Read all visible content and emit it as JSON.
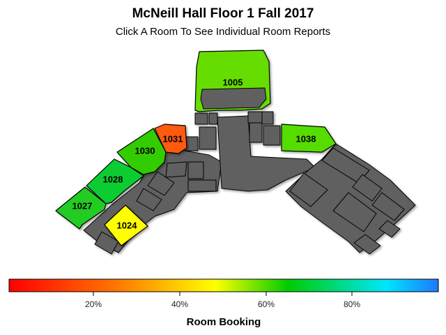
{
  "map": {
    "title": "McNeill Hall Floor 1 Fall 2017",
    "subtitle": "Click A Room To See Individual Room Reports"
  },
  "rooms": [
    {
      "id": "1005",
      "label": "1005",
      "booking_pct": 67,
      "color": "#66dd00"
    },
    {
      "id": "1031",
      "label": "1031",
      "booking_pct": 37,
      "color": "#ff5a10"
    },
    {
      "id": "1030",
      "label": "1030",
      "booking_pct": 69,
      "color": "#33cc00"
    },
    {
      "id": "1028",
      "label": "1028",
      "booking_pct": 71,
      "color": "#11cc33"
    },
    {
      "id": "1027",
      "label": "1027",
      "booking_pct": 70,
      "color": "#22cc22"
    },
    {
      "id": "1024",
      "label": "1024",
      "booking_pct": 50,
      "color": "#ffff00"
    },
    {
      "id": "1038",
      "label": "1038",
      "booking_pct": 66,
      "color": "#55dd00"
    }
  ],
  "legend": {
    "title": "Room Booking",
    "ticks": [
      "20%",
      "40%",
      "60%",
      "80%"
    ],
    "gradient": [
      "#ff0000",
      "#ff7700",
      "#ffff00",
      "#00cc00",
      "#00e5ff",
      "#1e78ff"
    ]
  },
  "colors": {
    "unbooked_space": "#606060",
    "outline": "#000000"
  }
}
